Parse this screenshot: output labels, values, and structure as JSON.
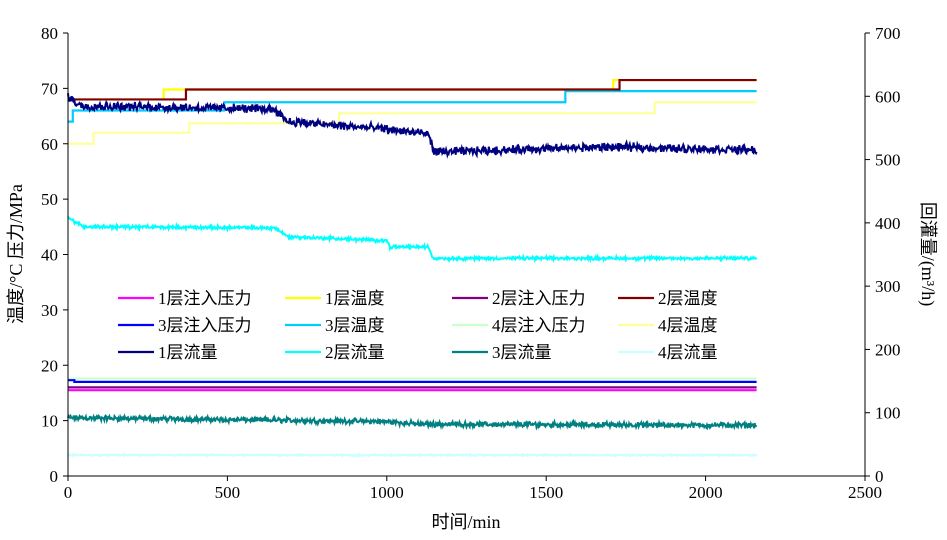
{
  "chart_data": {
    "type": "line",
    "xlabel": "时间/min",
    "ylabel_left": "温度/°C 压力/MPa",
    "ylabel_right": "回灌量/(m³/h)",
    "xlim": [
      0,
      2500
    ],
    "ylim_left": [
      0,
      80
    ],
    "ylim_right": [
      0,
      700
    ],
    "x_ticks": [
      0,
      500,
      1000,
      1500,
      2000,
      2500
    ],
    "y_left_ticks": [
      0,
      10,
      20,
      30,
      40,
      50,
      60,
      70,
      80
    ],
    "y_right_ticks": [
      0,
      100,
      200,
      300,
      400,
      500,
      600,
      700
    ],
    "grid": false,
    "legend_placement": "center-left inside plot, 3 rows x 4 columns",
    "series": [
      {
        "name": "1层注入压力",
        "axis": "left",
        "color": "#FF00FF",
        "kind": "step",
        "steps": [
          [
            0,
            15.5
          ],
          [
            2160,
            15.5
          ]
        ],
        "noise": 0
      },
      {
        "name": "1层温度",
        "axis": "left",
        "color": "#FFFF00",
        "kind": "step",
        "steps": [
          [
            0,
            68
          ],
          [
            300,
            69.8
          ],
          [
            1710,
            71.5
          ],
          [
            2160,
            71.5
          ]
        ],
        "noise": 0
      },
      {
        "name": "2层注入压力",
        "axis": "left",
        "color": "#800080",
        "kind": "step",
        "steps": [
          [
            0,
            16
          ],
          [
            2160,
            16
          ]
        ],
        "noise": 0
      },
      {
        "name": "2层温度",
        "axis": "left",
        "color": "#800000",
        "kind": "step",
        "steps": [
          [
            0,
            68
          ],
          [
            370,
            69.8
          ],
          [
            1730,
            71.5
          ],
          [
            2160,
            71.5
          ]
        ],
        "noise": 0
      },
      {
        "name": "3层注入压力",
        "axis": "left",
        "color": "#0000FF",
        "kind": "step",
        "steps": [
          [
            0,
            17.3
          ],
          [
            20,
            17
          ],
          [
            2160,
            17
          ]
        ],
        "noise": 0
      },
      {
        "name": "3层温度",
        "axis": "left",
        "color": "#00CCFF",
        "kind": "step",
        "steps": [
          [
            0,
            64
          ],
          [
            15,
            66
          ],
          [
            490,
            67.5
          ],
          [
            1560,
            69.5
          ],
          [
            2160,
            69.5
          ]
        ],
        "noise": 0
      },
      {
        "name": "4层注入压力",
        "axis": "left",
        "color": "#CCFFCC",
        "kind": "step",
        "steps": [
          [
            0,
            17.6
          ],
          [
            2160,
            17.6
          ]
        ],
        "noise": 0
      },
      {
        "name": "4层温度",
        "axis": "left",
        "color": "#FFFF99",
        "kind": "step",
        "steps": [
          [
            0,
            60
          ],
          [
            80,
            62
          ],
          [
            380,
            63.7
          ],
          [
            850,
            65.5
          ],
          [
            1840,
            67.5
          ],
          [
            2160,
            67.5
          ]
        ],
        "noise": 0
      },
      {
        "name": "1层流量",
        "axis": "right",
        "color": "#000080",
        "kind": "noisy",
        "steps": [
          [
            0,
            600
          ],
          [
            40,
            585
          ],
          [
            650,
            580
          ],
          [
            690,
            560
          ],
          [
            1000,
            548
          ],
          [
            1130,
            540
          ],
          [
            1150,
            512
          ],
          [
            1700,
            520
          ],
          [
            2160,
            515
          ]
        ],
        "noise": 8
      },
      {
        "name": "2层流量",
        "axis": "right",
        "color": "#00FFFF",
        "kind": "noisy",
        "steps": [
          [
            0,
            408
          ],
          [
            50,
            394
          ],
          [
            650,
            392
          ],
          [
            690,
            378
          ],
          [
            1000,
            372
          ],
          [
            1010,
            362
          ],
          [
            1130,
            362
          ],
          [
            1145,
            344
          ],
          [
            2160,
            344
          ]
        ],
        "noise": 3
      },
      {
        "name": "3层流量",
        "axis": "right",
        "color": "#008080",
        "kind": "noisy",
        "steps": [
          [
            0,
            92
          ],
          [
            1000,
            86
          ],
          [
            1100,
            82
          ],
          [
            2160,
            80
          ]
        ],
        "noise": 5
      },
      {
        "name": "4层流量",
        "axis": "right",
        "color": "#CCFFFF",
        "kind": "noisy",
        "steps": [
          [
            0,
            33
          ],
          [
            2160,
            33
          ]
        ],
        "noise": 1.5
      }
    ]
  }
}
